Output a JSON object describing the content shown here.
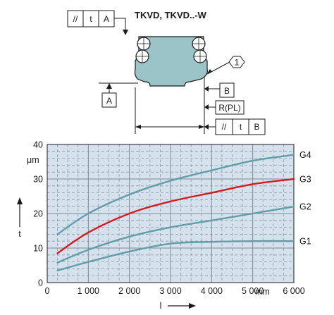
{
  "drawing": {
    "title": "TKVD, TKVD..-W",
    "fcf_top": {
      "symbol": "//",
      "tolerance": "t",
      "datum": "A"
    },
    "fcf_bottom": {
      "symbol": "//",
      "tolerance": "t",
      "datum": "B"
    },
    "datum_a": "A",
    "datum_b": "B",
    "reference_plane": "R(PL)",
    "callout": "1"
  },
  "chart_data": {
    "type": "line",
    "title": "",
    "xlabel": "l",
    "ylabel": "t",
    "y_unit": "μm",
    "x_unit": "mm",
    "xlim": [
      0,
      6000
    ],
    "ylim": [
      0,
      40
    ],
    "x_ticks": [
      0,
      1000,
      2000,
      3000,
      4000,
      5000,
      6000
    ],
    "x_tick_labels": [
      "0",
      "1 000",
      "2 000",
      "3 000",
      "4 000",
      "5 000",
      "6 000"
    ],
    "y_ticks": [
      0,
      10,
      20,
      30,
      40
    ],
    "y_tick_labels": [
      "0",
      "10",
      "20",
      "30",
      "40"
    ],
    "grid": true,
    "background": "#d5e2ee",
    "series": [
      {
        "name": "G4",
        "color": "#5f9ea6",
        "x": [
          250,
          1000,
          2000,
          3000,
          4000,
          5000,
          6000
        ],
        "y": [
          14,
          20,
          25.5,
          29.5,
          32.5,
          35.3,
          37
        ]
      },
      {
        "name": "G3",
        "color": "#d41c1c",
        "x": [
          250,
          1000,
          2000,
          3000,
          4000,
          5000,
          6000
        ],
        "y": [
          8.5,
          14.5,
          20,
          23.5,
          26,
          28.5,
          30
        ]
      },
      {
        "name": "G2",
        "color": "#5f9ea6",
        "x": [
          250,
          1000,
          2000,
          3000,
          4000,
          5000,
          6000
        ],
        "y": [
          5.8,
          9.5,
          13.3,
          16,
          18,
          20,
          22
        ]
      },
      {
        "name": "G1",
        "color": "#5f9ea6",
        "x": [
          250,
          1000,
          2000,
          3000,
          4000,
          5000,
          6000
        ],
        "y": [
          3.5,
          6,
          9,
          11.3,
          11.8,
          12,
          12
        ]
      }
    ]
  }
}
